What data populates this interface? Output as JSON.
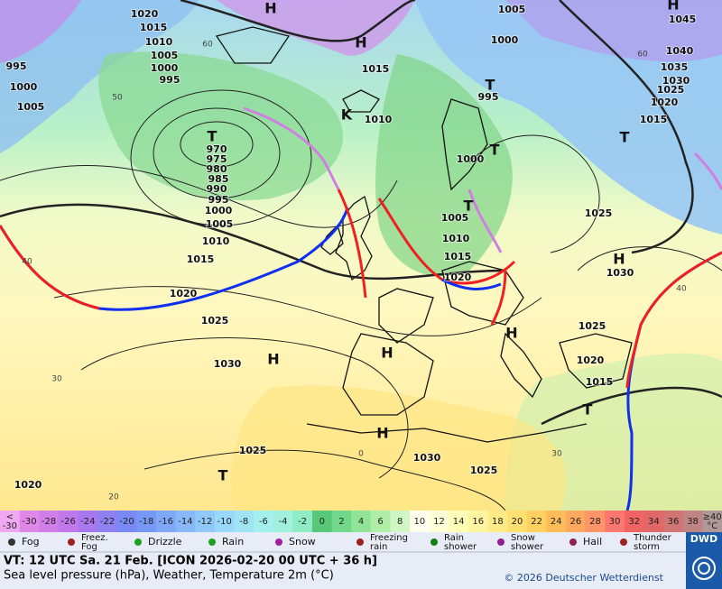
{
  "map": {
    "isobar_labels": [
      1020,
      1015,
      1010,
      1005,
      1000,
      995,
      995,
      1000,
      1005,
      970,
      975,
      980,
      985,
      990,
      995,
      1000,
      1005,
      1010,
      1015,
      1020,
      1025,
      1030,
      1025,
      1030,
      1025,
      1020,
      1005,
      1000,
      1015,
      1010,
      995,
      1000,
      1005,
      1010,
      1015,
      1020,
      1025,
      1030,
      1025,
      1020,
      1015,
      1045,
      1040,
      1035,
      1030,
      1025,
      1020,
      1015
    ],
    "pressure_centers": [
      "H",
      "H",
      "T",
      "T",
      "T",
      "T",
      "T",
      "H",
      "H",
      "H",
      "H",
      "H",
      "H",
      "T",
      "T",
      "K"
    ],
    "temperature_labels": [
      60,
      50,
      40,
      30,
      20,
      0,
      60,
      40,
      30
    ]
  },
  "color_scale": {
    "labels": [
      "<\n-30",
      -30,
      -28,
      -26,
      -24,
      -22,
      -20,
      -18,
      -16,
      -14,
      -12,
      -10,
      -8,
      -6,
      -4,
      -2,
      0,
      2,
      4,
      6,
      8,
      10,
      12,
      14,
      16,
      18,
      20,
      22,
      24,
      26,
      28,
      30,
      32,
      34,
      36,
      38,
      "≥40\n°C"
    ],
    "colors": [
      "#f0a8f0",
      "#e088e8",
      "#d07ee8",
      "#c078ea",
      "#a878ee",
      "#9080f2",
      "#7888f4",
      "#7898f8",
      "#80a8f8",
      "#88b8f8",
      "#90c8f8",
      "#98d8f8",
      "#a0e4f4",
      "#a4f0ec",
      "#a0f0dc",
      "#90ecc4",
      "#58c878",
      "#70d888",
      "#90e498",
      "#b0eea8",
      "#d0f6c4",
      "#fffff0",
      "#ffffd8",
      "#ffffb8",
      "#fff4a0",
      "#ffea88",
      "#ffe070",
      "#ffd060",
      "#ffbc58",
      "#ffa860",
      "#ff9468",
      "#ff7870",
      "#f06464",
      "#e06868",
      "#d07474",
      "#c08484",
      "#b09898"
    ]
  },
  "legend": [
    "Fog",
    "Freez.\nFog",
    "Drizzle",
    "Rain",
    "Snow",
    "Freezing\nrain",
    "Rain\nshower",
    "Snow\nshower",
    "Hail",
    "Thunder\nstorm"
  ],
  "footer": {
    "valid_time": "VT: 12 UTC Sa.  21 Feb. [ICON 2026-02-20  00 UTC + 36 h]",
    "description": "Sea level pressure (hPa), Weather, Temperature 2m (°C)",
    "copyright": "© 2026 Deutscher Wetterdienst",
    "logo": "DWD"
  }
}
